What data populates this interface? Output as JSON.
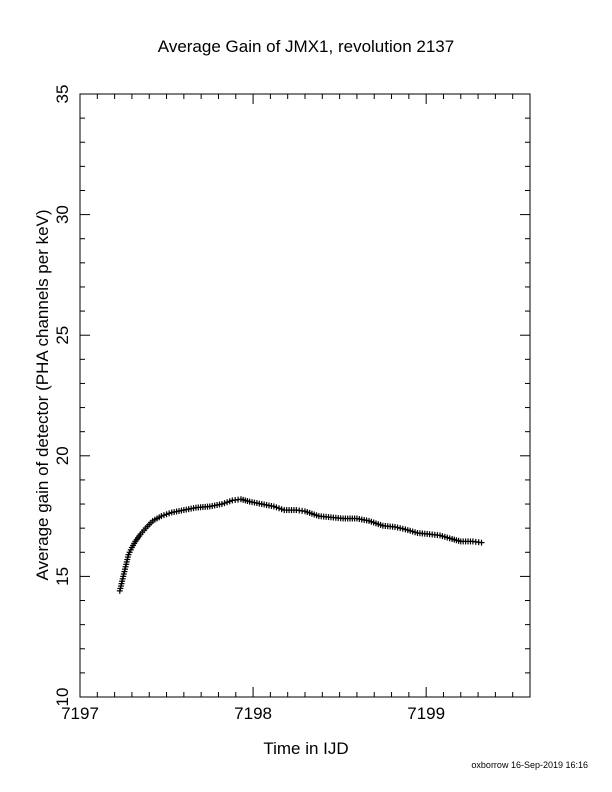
{
  "chart_data": {
    "type": "scatter",
    "title": "Average Gain of JMX1, revolution 2137",
    "xlabel": "Time in IJD",
    "ylabel": "Average gain of detector (PHA channels per keV)",
    "xlim": [
      7197,
      7199.6
    ],
    "ylim": [
      10,
      35
    ],
    "xticks": [
      7197,
      7198,
      7199
    ],
    "yticks": [
      10,
      15,
      20,
      25,
      30,
      35
    ],
    "marker": "plus",
    "grid": false,
    "series_color": "#000000",
    "points": [
      [
        7197.23,
        14.4
      ],
      [
        7197.24,
        14.7
      ],
      [
        7197.25,
        15.0
      ],
      [
        7197.26,
        15.3
      ],
      [
        7197.27,
        15.6
      ],
      [
        7197.28,
        15.9
      ],
      [
        7197.3,
        16.2
      ],
      [
        7197.32,
        16.45
      ],
      [
        7197.35,
        16.75
      ],
      [
        7197.38,
        17.0
      ],
      [
        7197.42,
        17.3
      ],
      [
        7197.47,
        17.5
      ],
      [
        7197.53,
        17.65
      ],
      [
        7197.6,
        17.75
      ],
      [
        7197.67,
        17.85
      ],
      [
        7197.75,
        17.9
      ],
      [
        7197.82,
        18.0
      ],
      [
        7197.88,
        18.15
      ],
      [
        7197.93,
        18.2
      ],
      [
        7197.98,
        18.1
      ],
      [
        7198.05,
        18.0
      ],
      [
        7198.12,
        17.9
      ],
      [
        7198.18,
        17.75
      ],
      [
        7198.25,
        17.75
      ],
      [
        7198.3,
        17.7
      ],
      [
        7198.38,
        17.5
      ],
      [
        7198.45,
        17.45
      ],
      [
        7198.52,
        17.4
      ],
      [
        7198.6,
        17.4
      ],
      [
        7198.67,
        17.3
      ],
      [
        7198.75,
        17.1
      ],
      [
        7198.82,
        17.05
      ],
      [
        7198.88,
        16.95
      ],
      [
        7198.95,
        16.8
      ],
      [
        7199.02,
        16.75
      ],
      [
        7199.08,
        16.7
      ],
      [
        7199.15,
        16.55
      ],
      [
        7199.2,
        16.45
      ],
      [
        7199.27,
        16.45
      ],
      [
        7199.32,
        16.4
      ]
    ]
  },
  "footer_text": "oxborrow 16-Sep-2019 16:16"
}
